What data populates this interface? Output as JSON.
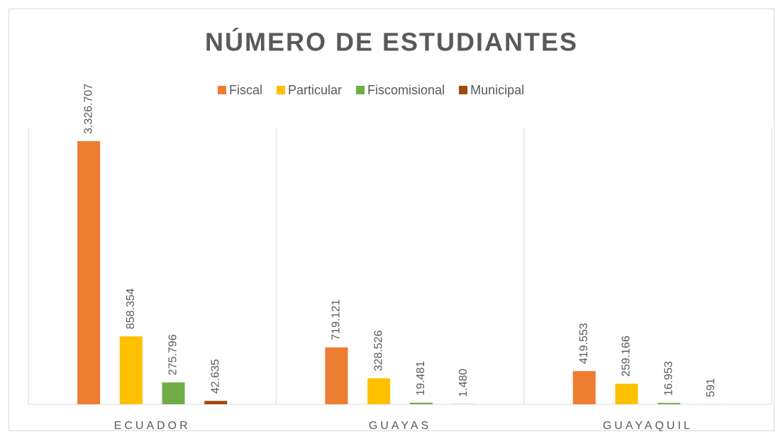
{
  "chart_data": {
    "type": "bar",
    "title": "NÚMERO DE ESTUDIANTES",
    "categories": [
      "ECUADOR",
      "GUAYAS",
      "GUAYAQUIL"
    ],
    "series": [
      {
        "name": "Fiscal",
        "color": "#ED7D31",
        "values": [
          3326707,
          719121,
          419553
        ],
        "value_labels": [
          "3.326.707",
          "719.121",
          "419.553"
        ]
      },
      {
        "name": "Particular",
        "color": "#FFC000",
        "values": [
          858354,
          328526,
          259166
        ],
        "value_labels": [
          "858.354",
          "328.526",
          "259.166"
        ]
      },
      {
        "name": "Fiscomisional",
        "color": "#70AD47",
        "values": [
          275796,
          19481,
          16953
        ],
        "value_labels": [
          "275.796",
          "19.481",
          "16.953"
        ]
      },
      {
        "name": "Municipal",
        "color": "#9E480E",
        "values": [
          42635,
          1480,
          591
        ],
        "value_labels": [
          "42.635",
          "1.480",
          "591"
        ]
      }
    ],
    "legend": "top"
  }
}
